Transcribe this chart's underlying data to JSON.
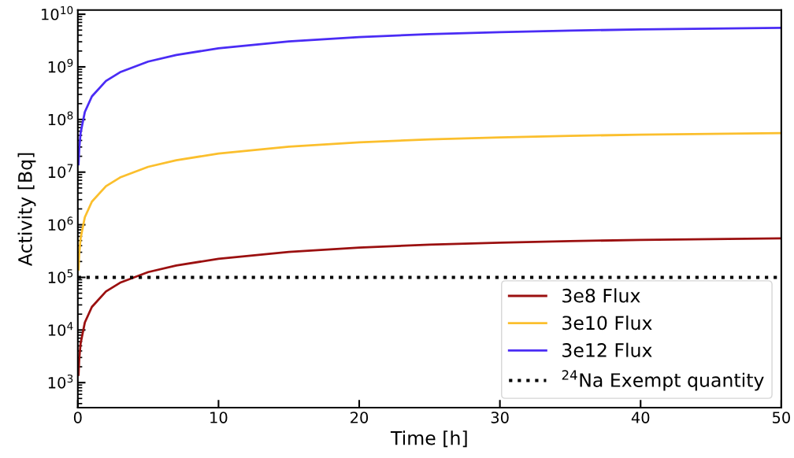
{
  "chart_data": {
    "type": "line",
    "xlabel": "Time [h]",
    "ylabel": "Activity [Bq]",
    "x": [
      0.05,
      0.1,
      0.2,
      0.5,
      1,
      2,
      3,
      5,
      7,
      10,
      15,
      20,
      25,
      30,
      35,
      40,
      45,
      50
    ],
    "series": [
      {
        "name": "3e8 Flux",
        "color": "#9b1010",
        "values": [
          1410,
          2800,
          5600,
          13900,
          27500,
          54000,
          79000,
          126000,
          168000,
          226000,
          305000,
          368000,
          418000,
          458000,
          489000,
          514000,
          534000,
          550000
        ]
      },
      {
        "name": "3e10 Flux",
        "color": "#fbbf2d",
        "values": [
          141000,
          280000,
          560000,
          1390000,
          2750000,
          5400000,
          7900000,
          12600000,
          16800000,
          22600000,
          30500000,
          36800000,
          41800000,
          45800000,
          48900000,
          51400000,
          53400000,
          55000000
        ]
      },
      {
        "name": "3e12 Flux",
        "color": "#4a2cf5",
        "values": [
          14100000,
          28000000,
          56000000,
          139000000,
          275000000,
          540000000,
          790000000,
          1260000000,
          1680000000,
          2260000000,
          3050000000,
          3680000000,
          4180000000,
          4580000000,
          4890000000,
          5140000000,
          5340000000,
          5500000000
        ]
      }
    ],
    "ref_lines": [
      {
        "axis": "y",
        "value": 100000,
        "label": "$^{24}$Na Exempt quantity",
        "color": "#000000",
        "line_style": "dotted"
      }
    ],
    "log": "y",
    "xlim": [
      0,
      50
    ],
    "xticks": [
      0,
      10,
      20,
      30,
      40,
      50
    ],
    "ylim": [
      335,
      12000000000
    ],
    "yticks": [
      {
        "value": 1000,
        "label": "10$^{3}$"
      },
      {
        "value": 10000,
        "label": "10$^{4}$"
      },
      {
        "value": 100000,
        "label": "10$^{5}$"
      },
      {
        "value": 1000000,
        "label": "10$^{6}$"
      },
      {
        "value": 10000000,
        "label": "10$^{7}$"
      },
      {
        "value": 100000000,
        "label": "10$^{8}$"
      },
      {
        "value": 1000000000,
        "label": "10$^{9}$"
      },
      {
        "value": 10000000000,
        "label": "10$^{10}$"
      }
    ],
    "legend": "bottom right",
    "grid": false,
    "line_style": "solid",
    "marker": "none"
  }
}
